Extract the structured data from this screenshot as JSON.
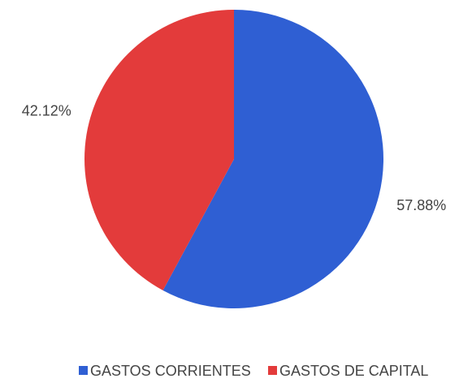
{
  "chart_data": {
    "type": "pie",
    "categories": [
      "GASTOS CORRIENTES",
      "GASTOS DE CAPITAL"
    ],
    "values": [
      57.88,
      42.12
    ],
    "value_labels": [
      "57.88%",
      "42.12%"
    ],
    "colors": [
      "#2f5fd3",
      "#e33b3b"
    ],
    "legend": "bottom"
  }
}
